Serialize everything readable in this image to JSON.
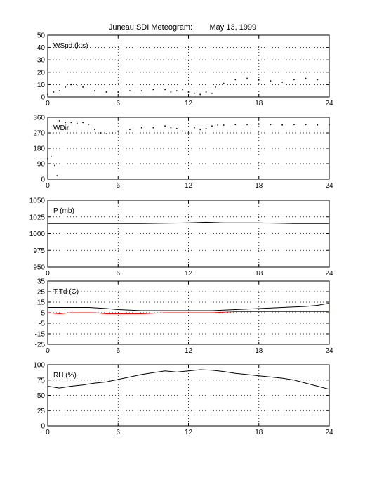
{
  "title": {
    "text": "Juneau SDI Meteogram:",
    "date": "May 13, 1999"
  },
  "colors": {
    "axes": "#000000",
    "grid": "#000000",
    "series_black": "#000000",
    "series_red": "#ff0000",
    "background": "#ffffff"
  },
  "chart_data": [
    {
      "type": "line",
      "panel_label": "WSpd (kts)",
      "xlim": [
        0,
        24
      ],
      "ylim": [
        0,
        50
      ],
      "xticks": [
        0,
        6,
        12,
        18,
        24
      ],
      "yticks": [
        0,
        10,
        20,
        30,
        40,
        50
      ],
      "grid": true,
      "series": [
        {
          "color": "#000000",
          "style": "dots",
          "x": [
            0,
            0.5,
            1,
            1.5,
            2,
            2.5,
            3,
            4,
            5,
            6,
            7,
            8,
            9,
            10,
            10.5,
            11,
            11.5,
            12,
            12.5,
            13,
            13.5,
            14,
            14.3,
            15,
            16,
            17,
            18,
            19,
            20,
            21,
            22,
            23,
            24
          ],
          "y": [
            2,
            4,
            5,
            8,
            10,
            9,
            8,
            5,
            4,
            4,
            5,
            5,
            6,
            6,
            4,
            5,
            6,
            4,
            3,
            2,
            4,
            3,
            8,
            11,
            14,
            15,
            14,
            13,
            12,
            14,
            15,
            14,
            12
          ]
        }
      ]
    },
    {
      "type": "scatter",
      "panel_label": "WDir",
      "xlim": [
        0,
        24
      ],
      "ylim": [
        0,
        360
      ],
      "xticks": [
        0,
        6,
        12,
        18,
        24
      ],
      "yticks": [
        0,
        90,
        180,
        270,
        360
      ],
      "grid": true,
      "series": [
        {
          "color": "#000000",
          "style": "dots",
          "x": [
            0,
            0.3,
            0.6,
            0.8,
            1,
            1.5,
            2,
            2.5,
            3,
            3.5,
            4,
            4.5,
            5,
            5.5,
            6,
            7,
            8,
            9,
            10,
            10.5,
            11,
            11.5,
            12,
            12.5,
            13,
            13.5,
            14,
            14.5,
            15,
            16,
            17,
            18,
            19,
            20,
            21,
            22,
            23,
            24
          ],
          "y": [
            120,
            130,
            80,
            20,
            340,
            330,
            330,
            325,
            330,
            320,
            290,
            270,
            265,
            270,
            280,
            290,
            300,
            300,
            310,
            300,
            295,
            280,
            270,
            300,
            290,
            295,
            310,
            315,
            315,
            318,
            318,
            320,
            318,
            316,
            318,
            318,
            316,
            318
          ]
        }
      ]
    },
    {
      "type": "line",
      "panel_label": "P (mb)",
      "xlim": [
        0,
        24
      ],
      "ylim": [
        950,
        1050
      ],
      "xticks": [
        0,
        6,
        12,
        18,
        24
      ],
      "yticks": [
        950,
        975,
        1000,
        1025,
        1050
      ],
      "grid": true,
      "series": [
        {
          "color": "#000000",
          "style": "line",
          "x": [
            0,
            4,
            8,
            12,
            13.5,
            15,
            18,
            21,
            24
          ],
          "y": [
            1015,
            1015,
            1015,
            1016,
            1017,
            1016,
            1016,
            1015,
            1015
          ]
        }
      ]
    },
    {
      "type": "line",
      "panel_label": "T,Td (C)",
      "xlim": [
        0,
        24
      ],
      "ylim": [
        -25,
        35
      ],
      "xticks": [
        0,
        6,
        12,
        18,
        24
      ],
      "yticks": [
        -25,
        -15,
        -5,
        5,
        15,
        25,
        35
      ],
      "grid": true,
      "series": [
        {
          "color": "#000000",
          "style": "line",
          "x": [
            0,
            2,
            3.5,
            5,
            6,
            8,
            10,
            12,
            14,
            16,
            18,
            20,
            22,
            23,
            24
          ],
          "y": [
            10,
            10,
            10,
            9,
            8,
            7,
            7,
            7,
            7,
            8,
            9,
            10,
            11,
            12,
            14
          ]
        },
        {
          "color": "#ff0000",
          "style": "line",
          "x": [
            0,
            1,
            2,
            3,
            4,
            5,
            6,
            8,
            10,
            12,
            14,
            16,
            18,
            20,
            22,
            24
          ],
          "y": [
            5,
            4,
            5,
            5,
            5,
            4,
            4,
            4,
            5,
            5,
            5,
            6,
            6,
            6,
            6,
            6
          ]
        }
      ]
    },
    {
      "type": "line",
      "panel_label": "RH (%)",
      "xlim": [
        0,
        24
      ],
      "ylim": [
        0,
        100
      ],
      "xticks": [
        0,
        6,
        12,
        18,
        24
      ],
      "yticks": [
        0,
        25,
        50,
        75,
        100
      ],
      "grid": true,
      "series": [
        {
          "color": "#000000",
          "style": "line",
          "x": [
            0,
            1,
            2,
            3,
            4,
            5,
            6,
            7,
            8,
            9,
            10,
            11,
            12,
            13,
            14,
            15,
            16,
            17,
            18,
            19,
            20,
            21,
            22,
            23,
            24
          ],
          "y": [
            65,
            62,
            65,
            67,
            70,
            72,
            76,
            80,
            84,
            87,
            90,
            88,
            90,
            92,
            91,
            89,
            86,
            84,
            82,
            80,
            78,
            75,
            70,
            65,
            60
          ]
        }
      ]
    }
  ]
}
